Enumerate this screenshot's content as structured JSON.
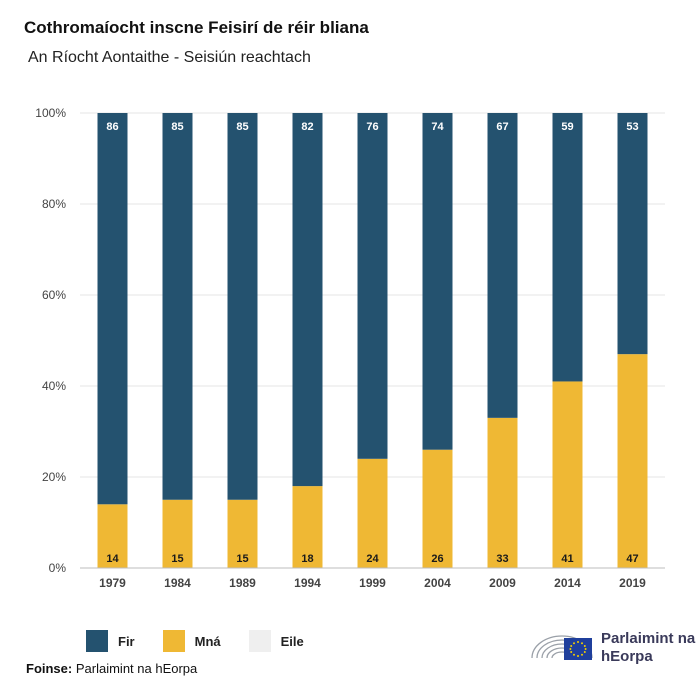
{
  "header": {
    "title": "Cothromaíocht inscne Feisirí de réir bliana",
    "subtitle": "An Ríocht Aontaithe - Seisiún reachtach"
  },
  "chart_data": {
    "type": "bar",
    "stacked": true,
    "categories": [
      "1979",
      "1984",
      "1989",
      "1994",
      "1999",
      "2004",
      "2009",
      "2014",
      "2019"
    ],
    "series": [
      {
        "name": "Mná",
        "color": "#efb834",
        "values": [
          14,
          15,
          15,
          18,
          24,
          26,
          33,
          41,
          47
        ]
      },
      {
        "name": "Fir",
        "color": "#24526f",
        "values": [
          86,
          85,
          85,
          82,
          76,
          74,
          67,
          59,
          53
        ]
      },
      {
        "name": "Eile",
        "color": "#efefef",
        "values": [
          0,
          0,
          0,
          0,
          0,
          0,
          0,
          0,
          0
        ]
      }
    ],
    "yticks": [
      "0%",
      "20%",
      "40%",
      "60%",
      "80%",
      "100%"
    ],
    "ylim": [
      0,
      100
    ],
    "grid": true,
    "legend_position": "bottom-left"
  },
  "legend": [
    {
      "label": "Fir",
      "color": "#24526f"
    },
    {
      "label": "Mná",
      "color": "#efb834"
    },
    {
      "label": "Eile",
      "color": "#efefef"
    }
  ],
  "footer": {
    "source_label": "Foinse:",
    "source_value": "Parlaimint na hEorpa",
    "logo_text": "Parlaimint na hEorpa",
    "logo_icon": "european-parliament-hemicycle-icon"
  }
}
